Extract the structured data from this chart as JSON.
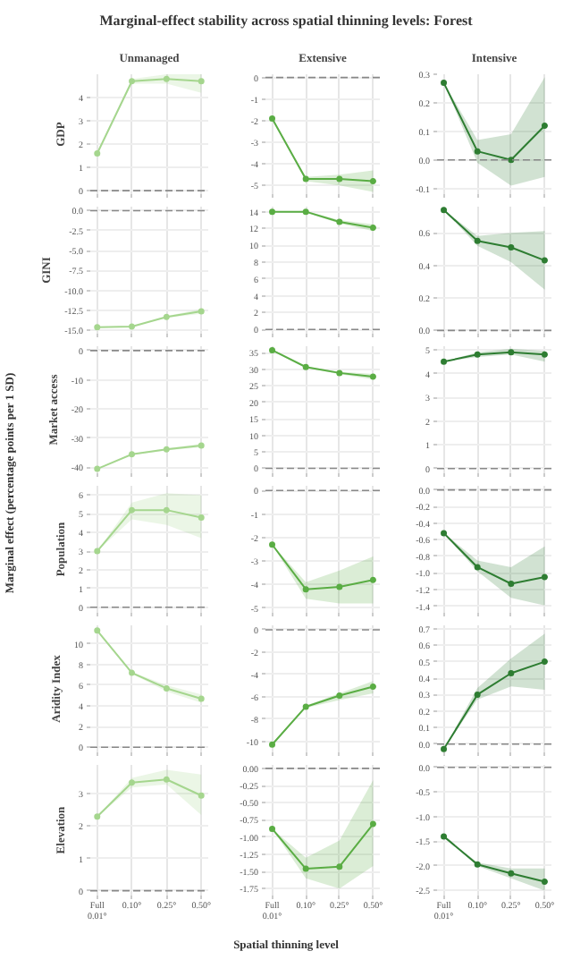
{
  "chart_data": [
    {
      "type": "line",
      "title": "Marginal-effect stability across spatial thinning levels: Forest",
      "subtitle": "Unmanaged",
      "ylabel": "GDP",
      "series": [
        {
          "color": "#a5d68e",
          "values": [
            1.6,
            4.7,
            4.8,
            4.7
          ],
          "lower": [
            1.6,
            4.6,
            4.6,
            4.2
          ],
          "upper": [
            1.6,
            4.8,
            5.0,
            5.0
          ]
        }
      ],
      "ylim": [
        -0.15,
        5.0
      ],
      "yticks": [
        0,
        1,
        2,
        3,
        4
      ],
      "ref_lines": [
        {
          "axis": "y",
          "value": 0,
          "color": "#888888",
          "line_style": "dashed"
        }
      ],
      "grid": true,
      "marker": "circle",
      "tick_labels": "y"
    },
    {
      "type": "line",
      "subtitle": "Extensive",
      "series": [
        {
          "color": "#5aad44",
          "values": [
            -1.9,
            -4.7,
            -4.7,
            -4.8
          ],
          "lower": [
            -1.9,
            -4.8,
            -5.0,
            -5.3
          ],
          "upper": [
            -1.9,
            -4.6,
            -4.5,
            -4.3
          ]
        }
      ],
      "ylim": [
        -5.4,
        0.15
      ],
      "yticks": [
        0,
        -1,
        -2,
        -3,
        -4,
        -5
      ],
      "ref_lines": [
        {
          "axis": "y",
          "value": 0,
          "color": "#888888",
          "line_style": "dashed"
        }
      ],
      "grid": true,
      "marker": "circle",
      "tick_labels": "y"
    },
    {
      "type": "line",
      "subtitle": "Intensive",
      "series": [
        {
          "color": "#2e7d32",
          "values": [
            0.27,
            0.03,
            0.0,
            0.12
          ],
          "lower": [
            0.27,
            -0.01,
            -0.09,
            -0.06
          ],
          "upper": [
            0.27,
            0.07,
            0.09,
            0.29
          ]
        }
      ],
      "ylim": [
        -0.12,
        0.3
      ],
      "yticks": [
        -0.1,
        {
          "value": 0,
          "label": "0.0"
        },
        0.1,
        0.2,
        0.3
      ],
      "ref_lines": [
        {
          "axis": "y",
          "value": 0,
          "color": "#888888",
          "line_style": "dashed"
        }
      ],
      "grid": true,
      "marker": "circle",
      "tick_labels": "y"
    },
    {
      "type": "line",
      "ylabel": "GINI",
      "series": [
        {
          "color": "#a5d68e",
          "values": [
            -14.6,
            -14.5,
            -13.3,
            -12.6
          ],
          "lower": [
            -14.6,
            -14.5,
            -13.4,
            -12.9
          ],
          "upper": [
            -14.6,
            -14.5,
            -13.2,
            -12.3
          ]
        }
      ],
      "ylim": [
        -15.4,
        0.5
      ],
      "yticks": [
        {
          "value": 0,
          "label": "0.0"
        },
        -2.5,
        {
          "value": -5,
          "label": "-5.0"
        },
        -7.5,
        {
          "value": -10,
          "label": "-10.0"
        },
        -12.5,
        {
          "value": -15,
          "label": "-15.0"
        }
      ],
      "ref_lines": [
        {
          "axis": "y",
          "value": 0,
          "color": "#888888",
          "line_style": "dashed"
        }
      ],
      "grid": true,
      "marker": "circle",
      "tick_labels": "y"
    },
    {
      "type": "line",
      "series": [
        {
          "color": "#5aad44",
          "values": [
            14.0,
            14.0,
            12.8,
            12.1
          ],
          "lower": [
            14.0,
            13.9,
            12.6,
            11.7
          ],
          "upper": [
            14.0,
            14.1,
            13.0,
            12.5
          ]
        }
      ],
      "ylim": [
        -0.5,
        14.6
      ],
      "yticks": [
        0,
        2,
        4,
        6,
        8,
        10,
        12,
        14
      ],
      "ref_lines": [
        {
          "axis": "y",
          "value": 0,
          "color": "#888888",
          "line_style": "dashed"
        }
      ],
      "grid": true,
      "marker": "circle",
      "tick_labels": "y"
    },
    {
      "type": "line",
      "series": [
        {
          "color": "#2e7d32",
          "values": [
            0.74,
            0.55,
            0.51,
            0.43
          ],
          "lower": [
            0.74,
            0.52,
            0.42,
            0.25
          ],
          "upper": [
            0.74,
            0.58,
            0.6,
            0.61
          ]
        }
      ],
      "ylim": [
        -0.02,
        0.76
      ],
      "yticks": [
        {
          "value": 0,
          "label": "0.0"
        },
        0.2,
        0.4,
        0.6
      ],
      "ref_lines": [
        {
          "axis": "y",
          "value": 0,
          "color": "#888888",
          "line_style": "dashed"
        }
      ],
      "grid": true,
      "marker": "circle",
      "tick_labels": "y"
    },
    {
      "type": "line",
      "ylabel": "Market access",
      "annotations": [
        "Marginal effect (percentage points per 1 SD)"
      ],
      "series": [
        {
          "color": "#a5d68e",
          "values": [
            -40.5,
            -35.5,
            -33.8,
            -32.5
          ],
          "lower": [
            -40.5,
            -35.7,
            -34.2,
            -33.1
          ],
          "upper": [
            -40.5,
            -35.3,
            -33.4,
            -31.9
          ]
        }
      ],
      "ylim": [
        -42,
        1.5
      ],
      "yticks": [
        0,
        -10,
        -20,
        -30,
        -40
      ],
      "ref_lines": [
        {
          "axis": "y",
          "value": 0,
          "color": "#888888",
          "line_style": "dashed"
        }
      ],
      "grid": true,
      "marker": "circle",
      "tick_labels": "y"
    },
    {
      "type": "line",
      "series": [
        {
          "color": "#5aad44",
          "values": [
            35.8,
            30.7,
            28.9,
            27.8
          ],
          "lower": [
            35.8,
            30.5,
            28.5,
            27.0
          ],
          "upper": [
            35.8,
            30.9,
            29.3,
            28.6
          ]
        }
      ],
      "ylim": [
        -1.5,
        37
      ],
      "yticks": [
        0,
        5,
        10,
        15,
        20,
        25,
        30,
        35
      ],
      "ref_lines": [
        {
          "axis": "y",
          "value": 0,
          "color": "#888888",
          "line_style": "dashed"
        }
      ],
      "grid": true,
      "marker": "circle",
      "tick_labels": "y"
    },
    {
      "type": "line",
      "series": [
        {
          "color": "#2e7d32",
          "values": [
            4.5,
            4.8,
            4.9,
            4.8
          ],
          "lower": [
            4.5,
            4.7,
            4.8,
            4.5
          ],
          "upper": [
            4.5,
            4.9,
            5.05,
            4.95
          ]
        }
      ],
      "ylim": [
        -0.2,
        5.15
      ],
      "yticks": [
        0,
        1,
        2,
        3,
        4,
        5
      ],
      "ref_lines": [
        {
          "axis": "y",
          "value": 0,
          "color": "#888888",
          "line_style": "dashed"
        }
      ],
      "grid": true,
      "marker": "circle",
      "tick_labels": "y"
    },
    {
      "type": "line",
      "ylabel": "Population",
      "series": [
        {
          "color": "#a5d68e",
          "values": [
            3.0,
            5.2,
            5.2,
            4.8
          ],
          "lower": [
            3.0,
            4.7,
            4.4,
            3.7
          ],
          "upper": [
            3.0,
            5.6,
            6.1,
            6.0
          ]
        }
      ],
      "ylim": [
        -0.3,
        6.5
      ],
      "yticks": [
        0,
        1,
        2,
        3,
        4,
        5,
        6
      ],
      "ref_lines": [
        {
          "axis": "y",
          "value": 0,
          "color": "#888888",
          "line_style": "dashed"
        }
      ],
      "grid": true,
      "marker": "circle",
      "tick_labels": "y"
    },
    {
      "type": "line",
      "series": [
        {
          "color": "#5aad44",
          "values": [
            -2.3,
            -4.2,
            -4.1,
            -3.8
          ],
          "lower": [
            -2.3,
            -4.6,
            -4.8,
            -4.8
          ],
          "upper": [
            -2.3,
            -3.9,
            -3.4,
            -2.8
          ]
        }
      ],
      "ylim": [
        -5.2,
        0.2
      ],
      "yticks": [
        0,
        -1,
        -2,
        -3,
        -4,
        -5
      ],
      "ref_lines": [
        {
          "axis": "y",
          "value": 0,
          "color": "#888888",
          "line_style": "dashed"
        }
      ],
      "grid": true,
      "marker": "circle",
      "tick_labels": "y"
    },
    {
      "type": "line",
      "series": [
        {
          "color": "#2e7d32",
          "values": [
            -0.52,
            -0.93,
            -1.13,
            -1.05
          ],
          "lower": [
            -0.52,
            -0.98,
            -1.3,
            -1.39
          ],
          "upper": [
            -0.52,
            -0.85,
            -0.93,
            -0.68
          ]
        }
      ],
      "ylim": [
        -1.48,
        0.05
      ],
      "yticks": [
        {
          "value": 0,
          "label": "0.0"
        },
        -0.2,
        -0.4,
        -0.6,
        -0.8,
        {
          "value": -1,
          "label": "-1.0"
        },
        -1.2,
        -1.4
      ],
      "ref_lines": [
        {
          "axis": "y",
          "value": 0,
          "color": "#888888",
          "line_style": "dashed"
        }
      ],
      "grid": true,
      "marker": "circle",
      "tick_labels": "y"
    },
    {
      "type": "line",
      "ylabel": "Aridity Index",
      "series": [
        {
          "color": "#a5d68e",
          "values": [
            11.3,
            7.2,
            5.7,
            4.7
          ],
          "lower": [
            11.3,
            7.1,
            5.4,
            4.3
          ],
          "upper": [
            11.3,
            7.3,
            6.0,
            5.1
          ]
        }
      ],
      "ylim": [
        -0.5,
        11.8
      ],
      "yticks": [
        0,
        2,
        4,
        6,
        8,
        10
      ],
      "ref_lines": [
        {
          "axis": "y",
          "value": 0,
          "color": "#888888",
          "line_style": "dashed"
        }
      ],
      "grid": true,
      "marker": "circle",
      "tick_labels": "y"
    },
    {
      "type": "line",
      "series": [
        {
          "color": "#5aad44",
          "values": [
            -10.3,
            -6.9,
            -5.9,
            -5.1
          ],
          "lower": [
            -10.3,
            -7.0,
            -6.3,
            -5.7
          ],
          "upper": [
            -10.3,
            -6.8,
            -5.7,
            -4.6
          ]
        }
      ],
      "ylim": [
        -11,
        0.4
      ],
      "yticks": [
        0,
        -2,
        -4,
        -6,
        -8,
        -10
      ],
      "ref_lines": [
        {
          "axis": "y",
          "value": 0,
          "color": "#888888",
          "line_style": "dashed"
        }
      ],
      "grid": true,
      "marker": "circle",
      "tick_labels": "y"
    },
    {
      "type": "line",
      "series": [
        {
          "color": "#2e7d32",
          "values": [
            -0.03,
            0.3,
            0.43,
            0.5
          ],
          "lower": [
            -0.03,
            0.27,
            0.35,
            0.33
          ],
          "upper": [
            -0.03,
            0.34,
            0.52,
            0.67
          ]
        }
      ],
      "ylim": [
        -0.05,
        0.72
      ],
      "yticks": [
        {
          "value": 0,
          "label": "0.0"
        },
        0.1,
        0.2,
        0.3,
        0.4,
        0.5,
        0.6,
        0.7
      ],
      "ref_lines": [
        {
          "axis": "y",
          "value": 0,
          "color": "#888888",
          "line_style": "dashed"
        }
      ],
      "grid": true,
      "marker": "circle",
      "tick_labels": "y"
    },
    {
      "type": "line",
      "ylabel": "Elevation",
      "categories": [
        "Full\n0.01°",
        "0.10°",
        "0.25°",
        "0.50°"
      ],
      "series": [
        {
          "color": "#a5d68e",
          "values": [
            2.3,
            3.35,
            3.45,
            2.95
          ],
          "lower": [
            2.3,
            3.2,
            3.3,
            2.35
          ],
          "upper": [
            2.3,
            3.5,
            3.75,
            3.6
          ]
        }
      ],
      "ylim": [
        -0.15,
        3.9
      ],
      "yticks": [
        0,
        1,
        2,
        3
      ],
      "ref_lines": [
        {
          "axis": "y",
          "value": 0,
          "color": "#888888",
          "line_style": "dashed"
        }
      ],
      "grid": true,
      "marker": "circle"
    },
    {
      "type": "line",
      "xlabel": "Spatial thinning level",
      "categories": [
        "Full\n0.01°",
        "0.10°",
        "0.25°",
        "0.50°"
      ],
      "series": [
        {
          "color": "#5aad44",
          "values": [
            -0.88,
            -1.46,
            -1.43,
            -0.81
          ],
          "lower": [
            -0.88,
            -1.6,
            -1.75,
            -1.42
          ],
          "upper": [
            -0.88,
            -1.3,
            -1.05,
            -0.17
          ]
        }
      ],
      "ylim": [
        -1.85,
        0.05
      ],
      "yticks": [
        {
          "value": 0,
          "label": "0.00"
        },
        -0.25,
        {
          "value": -0.5,
          "label": "-0.50"
        },
        -0.75,
        {
          "value": -1,
          "label": "-1.00"
        },
        -1.25,
        {
          "value": -1.5,
          "label": "-1.50"
        },
        -1.75
      ],
      "ref_lines": [
        {
          "axis": "y",
          "value": 0,
          "color": "#888888",
          "line_style": "dashed"
        }
      ],
      "grid": true,
      "marker": "circle"
    },
    {
      "type": "line",
      "categories": [
        "Full\n0.01°",
        "0.10°",
        "0.25°",
        "0.50°"
      ],
      "series": [
        {
          "color": "#2e7d32",
          "values": [
            -1.4,
            -1.97,
            -2.15,
            -2.32
          ],
          "lower": [
            -1.4,
            -2.0,
            -2.25,
            -2.5
          ],
          "upper": [
            -1.4,
            -1.93,
            -2.05,
            -2.05
          ]
        }
      ],
      "ylim": [
        -2.6,
        0.05
      ],
      "yticks": [
        {
          "value": 0,
          "label": "0.0"
        },
        -0.5,
        {
          "value": -1,
          "label": "-1.0"
        },
        -1.5,
        {
          "value": -2,
          "label": "-2.0"
        },
        -2.5
      ],
      "ref_lines": [
        {
          "axis": "y",
          "value": 0,
          "color": "#888888",
          "line_style": "dashed"
        }
      ],
      "grid": true,
      "marker": "circle"
    }
  ]
}
